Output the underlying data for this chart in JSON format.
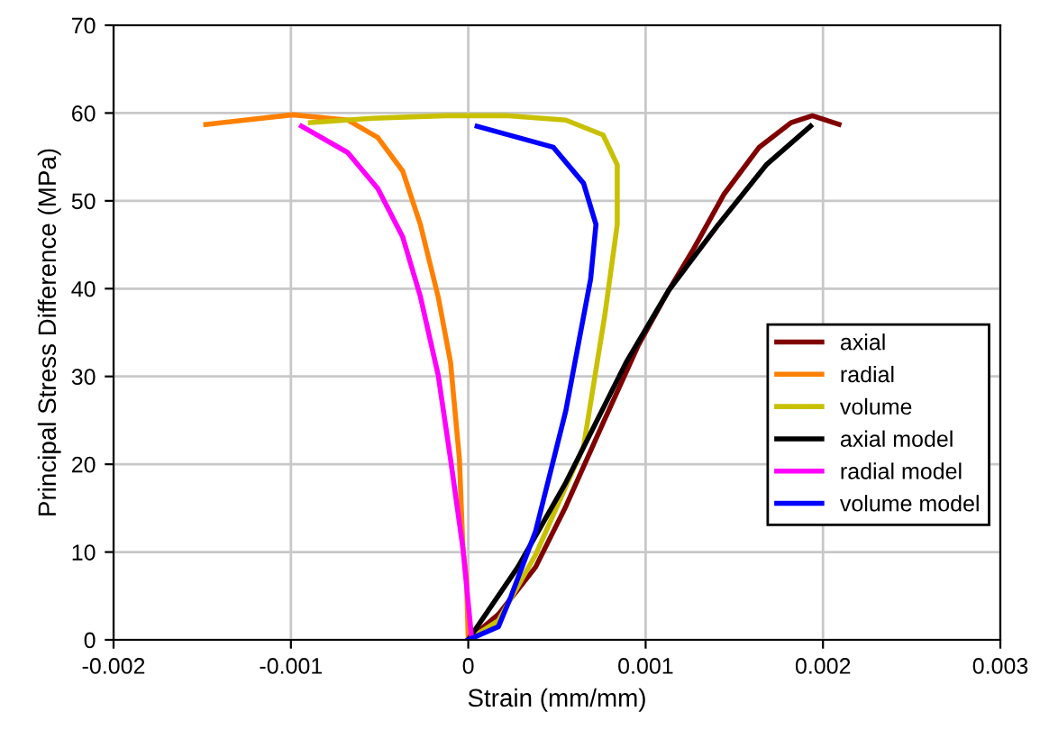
{
  "chart_data": {
    "type": "line",
    "xlabel": "Strain (mm/mm)",
    "ylabel": "Principal Stress Difference (MPa)",
    "xlim": [
      -0.002,
      0.003
    ],
    "xticks": [
      -0.002,
      -0.001,
      0,
      0.001,
      0.002,
      0.003
    ],
    "ylim": [
      0,
      70
    ],
    "yticks": [
      0,
      10,
      20,
      30,
      40,
      50,
      60,
      70
    ],
    "grid": true,
    "legend": "right",
    "line_style": "solid",
    "marker": "none",
    "series": [
      {
        "name": "axial",
        "color": "#800000",
        "x": [
          0,
          0.00017,
          0.00038,
          0.00055,
          0.00076,
          0.00096,
          0.00113,
          0.00127,
          0.00144,
          0.00164,
          0.00182,
          0.00194,
          0.00209
        ],
        "values": [
          0,
          2.9,
          8.3,
          15.2,
          24.7,
          33.6,
          39.8,
          44.5,
          50.7,
          56.1,
          58.9,
          59.7,
          58.7
        ]
      },
      {
        "name": "radial",
        "color": "#ff8000",
        "x": [
          0,
          -1e-05,
          -3e-05,
          -5e-05,
          -0.0001,
          -0.00017,
          -0.00027,
          -0.00037,
          -0.00051,
          -0.00068,
          -0.00099,
          -0.00148
        ],
        "values": [
          0,
          7.0,
          10.4,
          20.6,
          31.6,
          39.1,
          47.3,
          53.4,
          57.2,
          59.2,
          59.8,
          58.7
        ]
      },
      {
        "name": "volume",
        "color": "#c8c000",
        "x": [
          0,
          0.00017,
          0.00038,
          0.00065,
          0.00077,
          0.00084,
          0.00084,
          0.00076,
          0.00055,
          0.00021,
          -0.00013,
          -0.00054,
          -0.00089
        ],
        "values": [
          0,
          2.2,
          9.7,
          22.0,
          37.0,
          47.3,
          54.1,
          57.5,
          59.2,
          59.7,
          59.7,
          59.4,
          58.9
        ]
      },
      {
        "name": "axial model",
        "color": "#000000",
        "x": [
          0,
          0.00028,
          0.00055,
          0.00089,
          0.00113,
          0.00141,
          0.00168,
          0.00193
        ],
        "values": [
          0,
          8.3,
          17.9,
          31.6,
          39.8,
          47.3,
          54.1,
          58.5
        ]
      },
      {
        "name": "radial model",
        "color": "#ff00ff",
        "x": [
          2e-05,
          -3e-05,
          -0.0001,
          -0.00017,
          -0.00027,
          -0.00037,
          -0.00051,
          -0.00068,
          -0.00094
        ],
        "values": [
          0,
          10.4,
          20.6,
          30.2,
          39.1,
          45.9,
          51.4,
          55.5,
          58.5
        ]
      },
      {
        "name": "volume model",
        "color": "#0000ff",
        "x": [
          0,
          0.00017,
          0.00024,
          0.00038,
          0.00055,
          0.00069,
          0.00072,
          0.00065,
          0.00048,
          5e-05
        ],
        "values": [
          0,
          1.5,
          4.9,
          12.4,
          26.1,
          41.1,
          47.3,
          52.0,
          56.1,
          58.5
        ]
      }
    ]
  }
}
